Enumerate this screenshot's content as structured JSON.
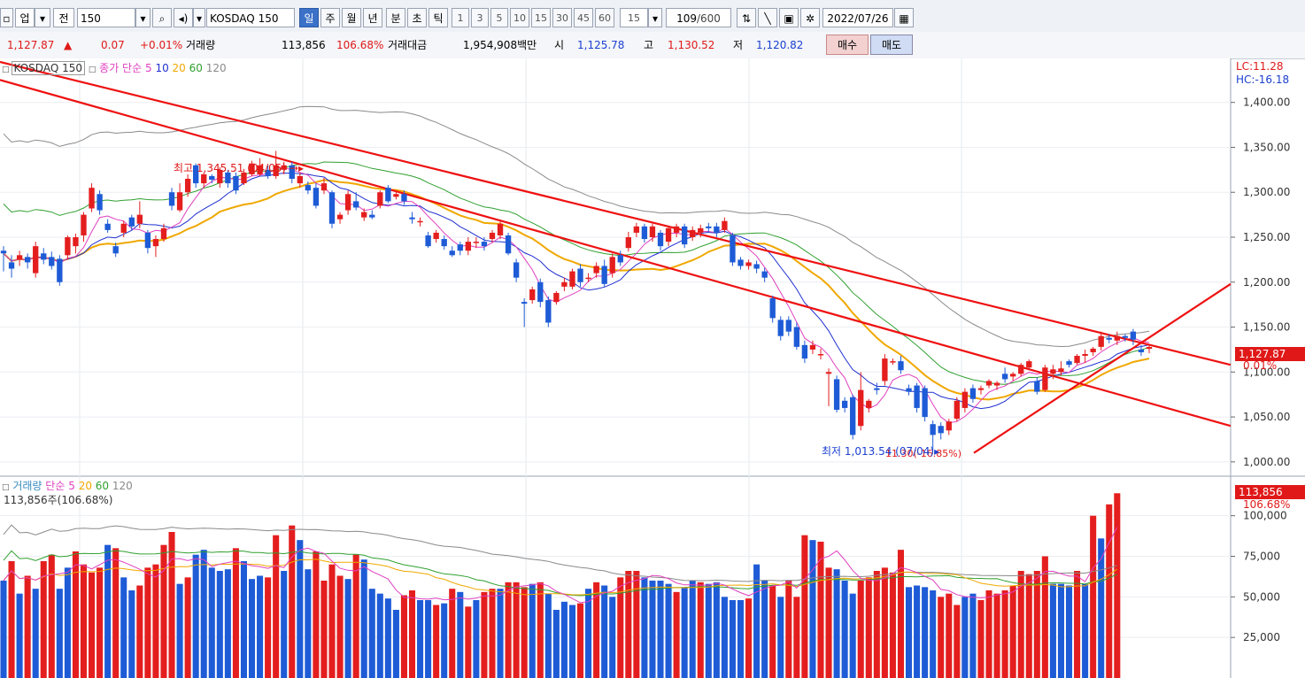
{
  "toolbar": {
    "market_type": "업",
    "range_label": "전",
    "code": "150",
    "name": "KOSDAQ 150",
    "periods": [
      "일",
      "주",
      "월",
      "년",
      "분",
      "초",
      "틱"
    ],
    "active_period": "일",
    "intervals": [
      "1",
      "3",
      "5",
      "10",
      "15",
      "30",
      "45",
      "60"
    ],
    "interval_input": "15",
    "count_value": "109",
    "count_max": "/600",
    "date": "2022/07/26"
  },
  "info": {
    "price": "1,127.87",
    "change_arrow": "▲",
    "change": "0.07",
    "change_pct": "+0.01%",
    "volume_label": "거래량",
    "volume": "113,856",
    "volume_ratio": "106.68%",
    "value_label": "거래대금",
    "value": "1,954,908백만",
    "open_label": "시",
    "open": "1,125.78",
    "high_label": "고",
    "high": "1,130.52",
    "low_label": "저",
    "low": "1,120.82",
    "buy_label": "매수",
    "sell_label": "매도"
  },
  "price_legend": {
    "name": "KOSDAQ 150",
    "label": "종가 단순",
    "ma": [
      "5",
      "10",
      "20",
      "60",
      "120"
    ]
  },
  "volume_legend": {
    "label": "거래량",
    "ma_label": "단순",
    "ma": [
      "5",
      "20",
      "60",
      "120"
    ],
    "value_text": "113,856주(106.68%)"
  },
  "annotations": {
    "high": "최고 1,345.51 (04/05)",
    "low": "최저 1,013.54 (07/04)",
    "low_overlap": "11.30(-16.85%)",
    "lc": "LC:11.28",
    "hc": "HC:-16.18",
    "price_tag": "1,127.87",
    "price_tag_pct": "0.01%",
    "vol_tag": "113,856",
    "vol_tag_pct": "106.68%"
  },
  "colors": {
    "up": "#e41e1e",
    "down": "#1e5bd6",
    "ma5": "#e040c0",
    "ma10": "#2030d0",
    "ma20": "#f0a800",
    "ma60": "#30a030",
    "ma120": "#8a8a8a",
    "trend": "#ee1111"
  },
  "chart_data": {
    "type": "candlestick",
    "price_axis": {
      "ticks": [
        "1,400.00",
        "1,350.00",
        "1,300.00",
        "1,250.00",
        "1,200.00",
        "1,150.00",
        "1,100.00",
        "1,050.00",
        "1,000.00"
      ],
      "ylim": [
        990,
        1445
      ]
    },
    "volume_axis": {
      "ticks": [
        "100,000",
        "75,000",
        "50,000",
        "25,000"
      ],
      "ylim": [
        0,
        120000
      ]
    },
    "candles": [
      [
        1235,
        1232,
        1212,
        1240
      ],
      [
        1222,
        1215,
        1205,
        1230
      ],
      [
        1225,
        1230,
        1218,
        1235
      ],
      [
        1228,
        1222,
        1215,
        1232
      ],
      [
        1210,
        1240,
        1205,
        1245
      ],
      [
        1232,
        1225,
        1220,
        1238
      ],
      [
        1228,
        1218,
        1214,
        1234
      ],
      [
        1226,
        1200,
        1196,
        1230
      ],
      [
        1230,
        1250,
        1225,
        1252
      ],
      [
        1240,
        1250,
        1232,
        1254
      ],
      [
        1252,
        1275,
        1245,
        1278
      ],
      [
        1282,
        1305,
        1278,
        1310
      ],
      [
        1298,
        1280,
        1275,
        1302
      ],
      [
        1265,
        1258,
        1255,
        1270
      ],
      [
        1240,
        1232,
        1228,
        1244
      ],
      [
        1255,
        1265,
        1250,
        1268
      ],
      [
        1272,
        1262,
        1258,
        1275
      ],
      [
        1265,
        1275,
        1260,
        1290
      ],
      [
        1255,
        1238,
        1232,
        1258
      ],
      [
        1240,
        1248,
        1228,
        1252
      ],
      [
        1248,
        1260,
        1245,
        1265
      ],
      [
        1300,
        1285,
        1280,
        1305
      ],
      [
        1280,
        1300,
        1278,
        1310
      ],
      [
        1300,
        1315,
        1295,
        1320
      ],
      [
        1330,
        1310,
        1305,
        1332
      ],
      [
        1310,
        1320,
        1305,
        1322
      ],
      [
        1318,
        1314,
        1310,
        1320
      ],
      [
        1310,
        1325,
        1305,
        1328
      ],
      [
        1322,
        1310,
        1305,
        1325
      ],
      [
        1318,
        1302,
        1298,
        1322
      ],
      [
        1310,
        1322,
        1308,
        1326
      ],
      [
        1320,
        1332,
        1318,
        1335
      ],
      [
        1320,
        1330,
        1318,
        1338
      ],
      [
        1325,
        1318,
        1315,
        1330
      ],
      [
        1318,
        1330,
        1315,
        1346
      ],
      [
        1325,
        1330,
        1320,
        1334
      ],
      [
        1330,
        1315,
        1310,
        1334
      ],
      [
        1310,
        1318,
        1305,
        1322
      ],
      [
        1308,
        1302,
        1298,
        1312
      ],
      [
        1305,
        1285,
        1282,
        1310
      ],
      [
        1302,
        1310,
        1298,
        1316
      ],
      [
        1300,
        1265,
        1260,
        1302
      ],
      [
        1270,
        1275,
        1265,
        1278
      ],
      [
        1280,
        1298,
        1275,
        1302
      ],
      [
        1290,
        1283,
        1280,
        1300
      ],
      [
        1272,
        1278,
        1268,
        1282
      ],
      [
        1275,
        1272,
        1270,
        1280
      ],
      [
        1285,
        1300,
        1282,
        1302
      ],
      [
        1305,
        1290,
        1288,
        1308
      ],
      [
        1295,
        1298,
        1292,
        1302
      ],
      [
        1298,
        1290,
        1286,
        1302
      ],
      [
        1272,
        1270,
        1265,
        1278
      ],
      [
        1268,
        1268,
        1262,
        1272
      ],
      [
        1252,
        1240,
        1238,
        1256
      ],
      [
        1248,
        1255,
        1244,
        1258
      ],
      [
        1248,
        1240,
        1236,
        1252
      ],
      [
        1235,
        1230,
        1228,
        1240
      ],
      [
        1242,
        1235,
        1230,
        1245
      ],
      [
        1235,
        1245,
        1230,
        1250
      ],
      [
        1245,
        1245,
        1238,
        1250
      ],
      [
        1245,
        1240,
        1235,
        1250
      ],
      [
        1248,
        1255,
        1244,
        1258
      ],
      [
        1252,
        1265,
        1248,
        1268
      ],
      [
        1252,
        1232,
        1230,
        1255
      ],
      [
        1222,
        1205,
        1200,
        1226
      ],
      [
        1178,
        1176,
        1150,
        1182
      ],
      [
        1180,
        1192,
        1176,
        1195
      ],
      [
        1200,
        1178,
        1172,
        1204
      ],
      [
        1180,
        1155,
        1150,
        1184
      ],
      [
        1178,
        1188,
        1175,
        1190
      ],
      [
        1195,
        1200,
        1190,
        1205
      ],
      [
        1195,
        1212,
        1192,
        1215
      ],
      [
        1215,
        1200,
        1195,
        1220
      ],
      [
        1205,
        1205,
        1200,
        1210
      ],
      [
        1210,
        1218,
        1205,
        1222
      ],
      [
        1218,
        1198,
        1195,
        1225
      ],
      [
        1210,
        1228,
        1205,
        1232
      ],
      [
        1230,
        1222,
        1218,
        1235
      ],
      [
        1238,
        1250,
        1234,
        1256
      ],
      [
        1255,
        1262,
        1250,
        1266
      ],
      [
        1262,
        1248,
        1244,
        1265
      ],
      [
        1250,
        1262,
        1245,
        1265
      ],
      [
        1255,
        1240,
        1235,
        1258
      ],
      [
        1245,
        1260,
        1240,
        1262
      ],
      [
        1255,
        1262,
        1250,
        1265
      ],
      [
        1262,
        1242,
        1238,
        1265
      ],
      [
        1250,
        1258,
        1246,
        1262
      ],
      [
        1255,
        1260,
        1250,
        1264
      ],
      [
        1262,
        1260,
        1255,
        1266
      ],
      [
        1262,
        1255,
        1250,
        1266
      ],
      [
        1258,
        1268,
        1255,
        1272
      ],
      [
        1252,
        1222,
        1218,
        1255
      ],
      [
        1225,
        1218,
        1214,
        1228
      ],
      [
        1218,
        1222,
        1214,
        1225
      ],
      [
        1220,
        1215,
        1210,
        1224
      ],
      [
        1212,
        1205,
        1200,
        1216
      ],
      [
        1182,
        1160,
        1155,
        1185
      ],
      [
        1158,
        1140,
        1135,
        1162
      ],
      [
        1158,
        1145,
        1140,
        1162
      ],
      [
        1150,
        1128,
        1125,
        1155
      ],
      [
        1130,
        1115,
        1110,
        1135
      ],
      [
        1125,
        1130,
        1120,
        1135
      ],
      [
        1120,
        1120,
        1114,
        1126
      ],
      [
        1098,
        1100,
        1062,
        1104
      ],
      [
        1092,
        1058,
        1055,
        1096
      ],
      [
        1068,
        1060,
        1055,
        1072
      ],
      [
        1072,
        1030,
        1025,
        1075
      ],
      [
        1040,
        1080,
        1035,
        1100
      ],
      [
        1060,
        1068,
        1055,
        1070
      ],
      [
        1082,
        1080,
        1075,
        1088
      ],
      [
        1090,
        1115,
        1085,
        1120
      ],
      [
        1112,
        1112,
        1108,
        1115
      ],
      [
        1112,
        1102,
        1098,
        1118
      ],
      [
        1082,
        1078,
        1074,
        1086
      ],
      [
        1085,
        1060,
        1055,
        1088
      ],
      [
        1082,
        1050,
        1045,
        1085
      ],
      [
        1042,
        1030,
        1013,
        1046
      ],
      [
        1040,
        1032,
        1025,
        1044
      ],
      [
        1035,
        1045,
        1030,
        1048
      ],
      [
        1048,
        1068,
        1045,
        1072
      ],
      [
        1060,
        1078,
        1055,
        1082
      ],
      [
        1082,
        1070,
        1066,
        1086
      ],
      [
        1080,
        1082,
        1075,
        1085
      ],
      [
        1085,
        1090,
        1082,
        1092
      ],
      [
        1085,
        1088,
        1080,
        1090
      ],
      [
        1098,
        1092,
        1088,
        1105
      ],
      [
        1095,
        1098,
        1090,
        1100
      ],
      [
        1098,
        1108,
        1095,
        1110
      ],
      [
        1105,
        1112,
        1102,
        1114
      ],
      [
        1090,
        1078,
        1075,
        1094
      ],
      [
        1080,
        1105,
        1078,
        1108
      ],
      [
        1098,
        1103,
        1092,
        1108
      ],
      [
        1100,
        1104,
        1096,
        1112
      ],
      [
        1112,
        1108,
        1105,
        1114
      ],
      [
        1110,
        1118,
        1108,
        1120
      ],
      [
        1118,
        1120,
        1110,
        1125
      ],
      [
        1122,
        1126,
        1118,
        1128
      ],
      [
        1128,
        1140,
        1124,
        1145
      ],
      [
        1138,
        1136,
        1132,
        1142
      ],
      [
        1135,
        1140,
        1130,
        1145
      ],
      [
        1140,
        1138,
        1134,
        1142
      ],
      [
        1145,
        1136,
        1130,
        1148
      ],
      [
        1125,
        1122,
        1118,
        1130
      ],
      [
        1125.78,
        1127.87,
        1120.82,
        1130.52
      ]
    ],
    "volumes": [
      [
        60,
        "d"
      ],
      [
        72,
        "r"
      ],
      [
        52,
        "d"
      ],
      [
        63,
        "r"
      ],
      [
        55,
        "d"
      ],
      [
        72,
        "r"
      ],
      [
        76,
        "r"
      ],
      [
        55,
        "d"
      ],
      [
        68,
        "d"
      ],
      [
        78,
        "r"
      ],
      [
        70,
        "r"
      ],
      [
        65,
        "r"
      ],
      [
        68,
        "r"
      ],
      [
        82,
        "d"
      ],
      [
        80,
        "r"
      ],
      [
        62,
        "d"
      ],
      [
        54,
        "d"
      ],
      [
        57,
        "r"
      ],
      [
        68,
        "r"
      ],
      [
        70,
        "r"
      ],
      [
        82,
        "r"
      ],
      [
        90,
        "r"
      ],
      [
        58,
        "d"
      ],
      [
        62,
        "r"
      ],
      [
        76,
        "d"
      ],
      [
        79,
        "d"
      ],
      [
        68,
        "d"
      ],
      [
        66,
        "d"
      ],
      [
        67,
        "d"
      ],
      [
        80,
        "r"
      ],
      [
        72,
        "d"
      ],
      [
        61,
        "d"
      ],
      [
        63,
        "d"
      ],
      [
        62,
        "r"
      ],
      [
        88,
        "r"
      ],
      [
        66,
        "d"
      ],
      [
        94,
        "r"
      ],
      [
        85,
        "d"
      ],
      [
        67,
        "d"
      ],
      [
        78,
        "r"
      ],
      [
        60,
        "r"
      ],
      [
        70,
        "r"
      ],
      [
        63,
        "r"
      ],
      [
        61,
        "d"
      ],
      [
        76,
        "r"
      ],
      [
        73,
        "d"
      ],
      [
        55,
        "d"
      ],
      [
        52,
        "d"
      ],
      [
        49,
        "d"
      ],
      [
        42,
        "d"
      ],
      [
        51,
        "r"
      ],
      [
        54,
        "r"
      ],
      [
        48,
        "d"
      ],
      [
        48,
        "d"
      ],
      [
        45,
        "r"
      ],
      [
        46,
        "d"
      ],
      [
        55,
        "r"
      ],
      [
        53,
        "d"
      ],
      [
        44,
        "r"
      ],
      [
        48,
        "d"
      ],
      [
        53,
        "r"
      ],
      [
        55,
        "r"
      ],
      [
        55,
        "d"
      ],
      [
        59,
        "r"
      ],
      [
        59,
        "r"
      ],
      [
        56,
        "r"
      ],
      [
        58,
        "d"
      ],
      [
        59,
        "r"
      ],
      [
        52,
        "d"
      ],
      [
        42,
        "d"
      ],
      [
        47,
        "d"
      ],
      [
        45,
        "d"
      ],
      [
        46,
        "r"
      ],
      [
        55,
        "d"
      ],
      [
        59,
        "r"
      ],
      [
        57,
        "d"
      ],
      [
        50,
        "d"
      ],
      [
        62,
        "r"
      ],
      [
        66,
        "r"
      ],
      [
        66,
        "r"
      ],
      [
        62,
        "d"
      ],
      [
        60,
        "d"
      ],
      [
        60,
        "d"
      ],
      [
        58,
        "d"
      ],
      [
        53,
        "r"
      ],
      [
        56,
        "d"
      ],
      [
        60,
        "d"
      ],
      [
        59,
        "r"
      ],
      [
        58,
        "d"
      ],
      [
        59,
        "d"
      ],
      [
        50,
        "d"
      ],
      [
        48,
        "d"
      ],
      [
        48,
        "d"
      ],
      [
        49,
        "r"
      ],
      [
        70,
        "d"
      ],
      [
        60,
        "d"
      ],
      [
        57,
        "r"
      ],
      [
        50,
        "d"
      ],
      [
        60,
        "r"
      ],
      [
        50,
        "r"
      ],
      [
        88,
        "r"
      ],
      [
        85,
        "d"
      ],
      [
        84,
        "r"
      ],
      [
        68,
        "r"
      ],
      [
        67,
        "d"
      ],
      [
        60,
        "d"
      ],
      [
        52,
        "d"
      ],
      [
        60,
        "r"
      ],
      [
        62,
        "r"
      ],
      [
        66,
        "r"
      ],
      [
        68,
        "r"
      ],
      [
        65,
        "r"
      ],
      [
        79,
        "r"
      ],
      [
        56,
        "d"
      ],
      [
        57,
        "d"
      ],
      [
        56,
        "d"
      ],
      [
        54,
        "d"
      ],
      [
        50,
        "r"
      ],
      [
        52,
        "r"
      ],
      [
        45,
        "r"
      ],
      [
        50,
        "d"
      ],
      [
        52,
        "d"
      ],
      [
        48,
        "r"
      ],
      [
        54,
        "r"
      ],
      [
        52,
        "r"
      ],
      [
        54,
        "r"
      ],
      [
        57,
        "r"
      ],
      [
        66,
        "r"
      ],
      [
        64,
        "r"
      ],
      [
        66,
        "r"
      ],
      [
        75,
        "r"
      ],
      [
        58,
        "d"
      ],
      [
        58,
        "d"
      ],
      [
        57,
        "d"
      ],
      [
        66,
        "r"
      ],
      [
        58,
        "d"
      ],
      [
        100,
        "r"
      ],
      [
        86,
        "d"
      ],
      [
        107,
        "r"
      ],
      [
        113.856,
        "r"
      ]
    ],
    "trendlines_price": [
      [
        [
          0,
          1445
        ],
        [
          1390,
          1108
        ]
      ],
      [
        [
          0,
          1425
        ],
        [
          1390,
          1040
        ]
      ],
      [
        [
          1100,
          1010
        ],
        [
          1390,
          1198
        ]
      ]
    ]
  }
}
